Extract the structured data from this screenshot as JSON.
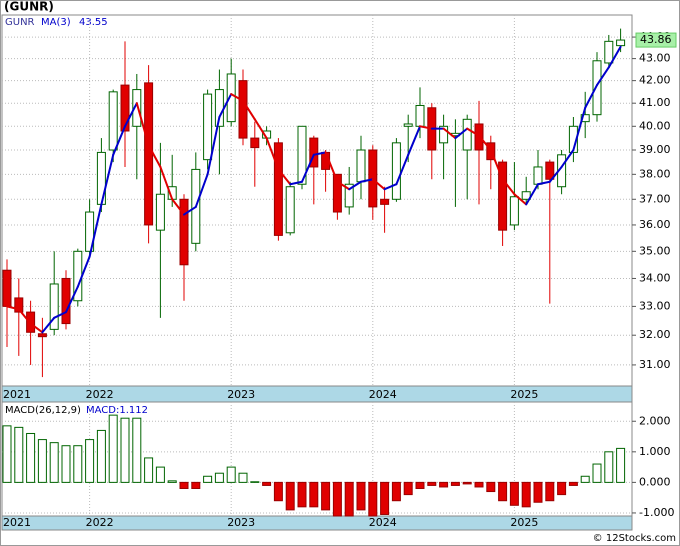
{
  "footer": "© 12Stocks.com",
  "chart_data": [
    {
      "type": "candlestick",
      "title": "(GUNR)",
      "ticker": "GUNR",
      "categories": [
        "2021",
        null,
        null,
        null,
        null,
        null,
        null,
        "2022",
        null,
        null,
        null,
        null,
        null,
        null,
        null,
        null,
        null,
        null,
        null,
        "2023",
        null,
        null,
        null,
        null,
        null,
        null,
        null,
        null,
        null,
        null,
        null,
        "2024",
        null,
        null,
        null,
        null,
        null,
        null,
        null,
        null,
        null,
        null,
        null,
        "2025",
        null,
        null,
        null,
        null,
        null,
        null,
        null,
        null,
        null
      ],
      "open": [
        34.3,
        33.3,
        32.8,
        32.05,
        32.2,
        34.0,
        33.2,
        35.0,
        36.8,
        39.0,
        41.8,
        40.0,
        41.9,
        35.8,
        37.0,
        37.0,
        35.3,
        38.6,
        40.0,
        40.2,
        42.0,
        39.5,
        39.5,
        39.3,
        35.7,
        37.6,
        39.5,
        38.9,
        38.0,
        36.7,
        37.7,
        39.0,
        37.0,
        37.0,
        40.0,
        40.0,
        40.8,
        39.3,
        39.6,
        39.0,
        40.1,
        39.3,
        38.5,
        36.0,
        37.0,
        37.6,
        38.5,
        37.5,
        38.9,
        40.2,
        40.5,
        42.8,
        43.6
      ],
      "high": [
        34.7,
        34.0,
        33.2,
        32.6,
        35.0,
        34.3,
        35.1,
        37.0,
        39.5,
        41.6,
        43.8,
        42.3,
        42.7,
        39.3,
        38.8,
        37.2,
        38.9,
        41.6,
        42.5,
        43.0,
        42.5,
        40.2,
        40.0,
        39.5,
        37.7,
        40.0,
        39.6,
        39.0,
        38.0,
        38.3,
        39.6,
        39.2,
        37.5,
        39.5,
        40.5,
        41.7,
        41.0,
        40.5,
        40.3,
        40.5,
        41.1,
        39.6,
        38.6,
        38.5,
        37.9,
        39.0,
        38.6,
        39.0,
        40.4,
        41.5,
        43.3,
        44.1,
        44.4
      ],
      "low": [
        31.6,
        31.3,
        31.0,
        30.6,
        32.0,
        32.2,
        33.0,
        34.8,
        36.5,
        38.5,
        38.3,
        37.8,
        35.3,
        32.6,
        36.7,
        33.2,
        35.0,
        38.2,
        38.0,
        40.0,
        39.2,
        37.5,
        39.2,
        35.4,
        35.6,
        37.4,
        36.8,
        37.3,
        36.2,
        36.4,
        37.0,
        36.2,
        35.7,
        36.9,
        38.5,
        39.5,
        37.8,
        37.8,
        36.7,
        37.0,
        36.8,
        37.4,
        35.2,
        35.8,
        36.8,
        37.4,
        33.1,
        37.2,
        38.5,
        39.5,
        40.2,
        42.6,
        43.3
      ],
      "close": [
        33.0,
        32.8,
        32.1,
        31.95,
        33.8,
        32.4,
        35.0,
        36.5,
        38.9,
        41.5,
        39.8,
        41.6,
        36.0,
        37.2,
        37.5,
        34.5,
        38.2,
        41.4,
        41.6,
        42.3,
        39.5,
        39.1,
        39.8,
        35.6,
        37.5,
        40.0,
        38.3,
        38.2,
        36.5,
        37.6,
        39.0,
        36.7,
        36.8,
        39.3,
        40.1,
        40.9,
        39.0,
        40.0,
        39.7,
        40.3,
        39.0,
        38.6,
        35.8,
        37.1,
        37.3,
        38.3,
        37.8,
        38.8,
        40.0,
        40.5,
        42.9,
        43.8,
        43.86
      ],
      "last_close_label": "43.86",
      "ma": {
        "name": "MA(3)",
        "value_label": "43.55",
        "values": [
          33.0,
          32.9,
          32.4,
          32.1,
          32.6,
          32.8,
          33.7,
          34.8,
          36.8,
          38.8,
          40.0,
          41.0,
          39.2,
          38.3,
          37.0,
          36.4,
          36.7,
          38.0,
          40.4,
          41.4,
          41.1,
          40.3,
          39.5,
          38.2,
          37.6,
          37.7,
          38.8,
          38.9,
          37.7,
          37.4,
          37.7,
          37.8,
          37.4,
          37.6,
          38.8,
          40.0,
          39.9,
          39.9,
          39.5,
          39.9,
          39.6,
          39.0,
          37.8,
          37.2,
          36.8,
          37.6,
          37.7,
          38.3,
          39.0,
          40.8,
          41.8,
          42.6,
          43.55
        ]
      },
      "up_color": "#006400",
      "down_color": "#e00000",
      "ma_up_color": "#0000cc",
      "ma_down_color": "#e00000",
      "log_scale": true,
      "grid": true,
      "ylim": [
        30.31,
        45.05
      ],
      "yticks": [
        {
          "value": 31,
          "label": "31.00"
        },
        {
          "value": 32,
          "label": "32.00"
        },
        {
          "value": 33,
          "label": "33.00"
        },
        {
          "value": 34,
          "label": "34.00"
        },
        {
          "value": 35,
          "label": "35.00"
        },
        {
          "value": 36,
          "label": "36.00"
        },
        {
          "value": 37,
          "label": "37.00"
        },
        {
          "value": 38,
          "label": "38.00"
        },
        {
          "value": 39,
          "label": "39.00"
        },
        {
          "value": 40,
          "label": "40.00"
        },
        {
          "value": 41,
          "label": "41.00"
        },
        {
          "value": 42,
          "label": "42.00"
        },
        {
          "value": 43,
          "label": "43.00"
        },
        {
          "value": 44,
          "label": "44.00"
        }
      ]
    },
    {
      "type": "bar",
      "title": "MACD(26,12,9)",
      "value_label": "MACD:1.112",
      "categories": [
        "2021",
        null,
        null,
        null,
        null,
        null,
        null,
        "2022",
        null,
        null,
        null,
        null,
        null,
        null,
        null,
        null,
        null,
        null,
        null,
        "2023",
        null,
        null,
        null,
        null,
        null,
        null,
        null,
        null,
        null,
        null,
        null,
        "2024",
        null,
        null,
        null,
        null,
        null,
        null,
        null,
        null,
        null,
        null,
        null,
        "2025",
        null,
        null,
        null,
        null,
        null,
        null,
        null,
        null,
        null
      ],
      "values": [
        1.85,
        1.8,
        1.6,
        1.4,
        1.3,
        1.2,
        1.2,
        1.4,
        1.7,
        2.2,
        2.1,
        2.1,
        0.8,
        0.5,
        0.05,
        -0.2,
        -0.2,
        0.2,
        0.3,
        0.5,
        0.3,
        0.02,
        -0.1,
        -0.6,
        -0.9,
        -0.8,
        -0.8,
        -0.9,
        -1.1,
        -1.1,
        -0.9,
        -1.1,
        -1.05,
        -0.6,
        -0.4,
        -0.2,
        -0.1,
        -0.15,
        -0.1,
        -0.05,
        -0.15,
        -0.3,
        -0.6,
        -0.75,
        -0.8,
        -0.65,
        -0.6,
        -0.4,
        -0.1,
        0.2,
        0.6,
        1.0,
        1.112
      ],
      "positive_color": "#006400",
      "negative_color": "#e00000",
      "grid": true,
      "ylim": [
        -1.1,
        2.63
      ],
      "yticks": [
        {
          "value": 2,
          "label": "2.000"
        },
        {
          "value": 1,
          "label": "1.000"
        },
        {
          "value": 0,
          "label": "0.000"
        },
        {
          "value": -1,
          "label": "-1.000"
        }
      ]
    }
  ]
}
